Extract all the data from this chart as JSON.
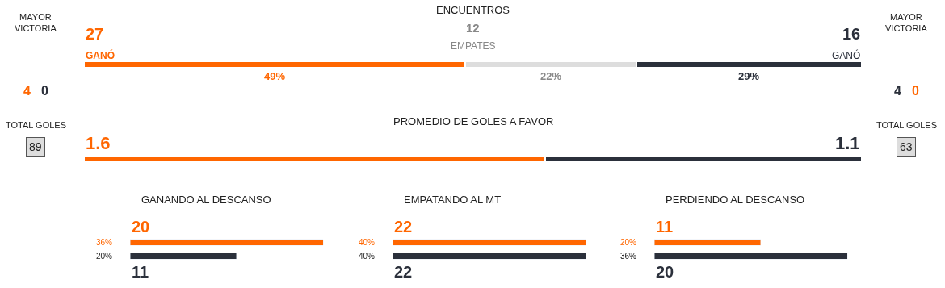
{
  "chart_data": [
    {
      "type": "other",
      "title": "MAYOR VICTORIA",
      "annotations": [
        "4",
        "0",
        "TOTAL GOLES",
        "89"
      ]
    },
    {
      "type": "bar",
      "orientation": "horizontal",
      "stacked": true,
      "title": "ENCUENTROS",
      "categories": [
        null
      ],
      "tick_labels": false,
      "annotations": [
        "27",
        "GANÓ",
        "12",
        "EMPATES",
        "16",
        "GANÓ"
      ],
      "series": [
        {
          "color": "#ff6600",
          "values": [
            49
          ],
          "value_labels": [
            "49%"
          ]
        },
        {
          "color": "#dddddd",
          "values": [
            22
          ],
          "value_labels": [
            "22%"
          ]
        },
        {
          "color": "#2b303b",
          "values": [
            29
          ],
          "value_labels": [
            "29%"
          ]
        }
      ]
    },
    {
      "type": "bar",
      "orientation": "horizontal",
      "stacked": true,
      "title": "PROMEDIO DE GOLES A FAVOR",
      "categories": [
        null
      ],
      "xlim": [
        0,
        2.7
      ],
      "tick_labels": false,
      "data_labels": true,
      "series": [
        {
          "color": "#ff6600",
          "values": [
            1.6
          ]
        },
        {
          "color": "#2b303b",
          "values": [
            1.1
          ]
        }
      ]
    },
    {
      "type": "bar",
      "orientation": "horizontal",
      "title": "GANANDO AL DESCANSO",
      "categories": [
        null,
        null
      ],
      "values": [
        20,
        11
      ],
      "colors": [
        "#ff6600",
        "#2b303b"
      ],
      "data_labels": true,
      "tick_labels": false,
      "annotations": [
        "36%",
        "20%"
      ]
    },
    {
      "type": "bar",
      "orientation": "horizontal",
      "title": "EMPATANDO AL MT",
      "categories": [
        null,
        null
      ],
      "values": [
        22,
        22
      ],
      "colors": [
        "#ff6600",
        "#2b303b"
      ],
      "data_labels": true,
      "tick_labels": false,
      "annotations": [
        "40%",
        "40%"
      ]
    },
    {
      "type": "bar",
      "orientation": "horizontal",
      "title": "PERDIENDO AL DESCANSO",
      "categories": [
        null,
        null
      ],
      "values": [
        11,
        20
      ],
      "colors": [
        "#ff6600",
        "#2b303b"
      ],
      "data_labels": true,
      "tick_labels": false,
      "annotations": [
        "20%",
        "36%"
      ]
    },
    {
      "type": "other",
      "title": "MAYOR VICTORIA",
      "annotations": [
        "4",
        "0",
        "TOTAL GOLES",
        "63"
      ]
    }
  ]
}
